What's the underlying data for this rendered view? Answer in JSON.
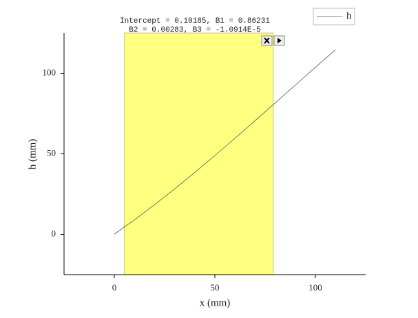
{
  "chart_data": {
    "type": "line",
    "annotations": [
      "Intercept = 0.10185, B1 = 0.86231",
      "B2 = 0.00283, B3 = -1.0914E-5"
    ],
    "xlabel": "x (mm)",
    "ylabel": "h (mm)",
    "x": [
      0,
      10,
      20,
      30,
      40,
      50,
      60,
      70,
      80,
      90,
      100,
      110
    ],
    "series": [
      {
        "name": "h",
        "color": "#555555",
        "values": [
          0.102,
          8.997,
          18.393,
          28.223,
          38.424,
          48.929,
          59.672,
          70.588,
          81.611,
          92.677,
          103.719,
          114.672
        ]
      }
    ],
    "highlight_range": [
      5,
      79
    ],
    "highlight_color": "#ffff80",
    "xlim": [
      -25,
      125
    ],
    "xticks": [
      0,
      50,
      100
    ],
    "ylim": [
      -25,
      125
    ],
    "yticks": [
      0,
      50,
      100
    ],
    "legend": "top-right"
  }
}
